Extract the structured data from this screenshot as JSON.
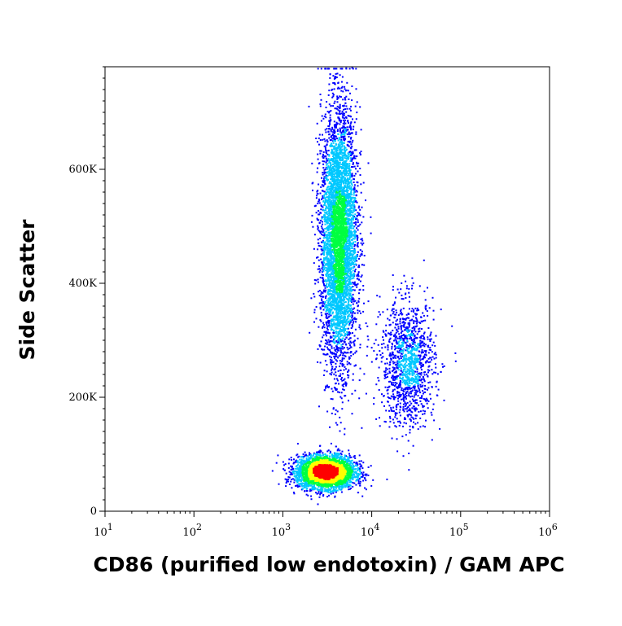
{
  "chart_data": {
    "type": "scatter",
    "title": "",
    "xlabel": "CD86 (purified low endotoxin) / GAM APC",
    "ylabel": "Side Scatter",
    "xscale": "log",
    "xlim": [
      10,
      1000000
    ],
    "ylim": [
      0,
      780000
    ],
    "grid": false,
    "legend": "none",
    "density_coloring": "pseudocolor (blue-cyan-green-yellow-red)",
    "x_ticks": [
      {
        "value": 10,
        "base": "10",
        "exp": "1"
      },
      {
        "value": 100,
        "base": "10",
        "exp": "2"
      },
      {
        "value": 1000,
        "base": "10",
        "exp": "3"
      },
      {
        "value": 10000,
        "base": "10",
        "exp": "4"
      },
      {
        "value": 100000,
        "base": "10",
        "exp": "5"
      },
      {
        "value": 1000000,
        "base": "10",
        "exp": "6"
      }
    ],
    "y_ticks": [
      {
        "value": 0,
        "label": "0"
      },
      {
        "value": 200000,
        "label": "200K"
      },
      {
        "value": 400000,
        "label": "400K"
      },
      {
        "value": 600000,
        "label": "600K"
      }
    ],
    "populations": [
      {
        "name": "",
        "x_center": 3000,
        "y_center": 70000,
        "log10_x_sd": 0.16,
        "y_sd": 14000,
        "events": 4000
      },
      {
        "name": "",
        "x_center": 4200,
        "y_center": 480000,
        "log10_x_sd": 0.1,
        "y_sd": 110000,
        "events": 5500
      },
      {
        "name": "",
        "x_center": 25000,
        "y_center": 260000,
        "log10_x_sd": 0.15,
        "y_sd": 55000,
        "events": 1300
      }
    ]
  },
  "colors": {
    "low": "#0000ff",
    "mid_low": "#00c8ff",
    "mid": "#00ff40",
    "mid_high": "#ffff00",
    "high": "#ff0000",
    "axis": "#000000"
  }
}
